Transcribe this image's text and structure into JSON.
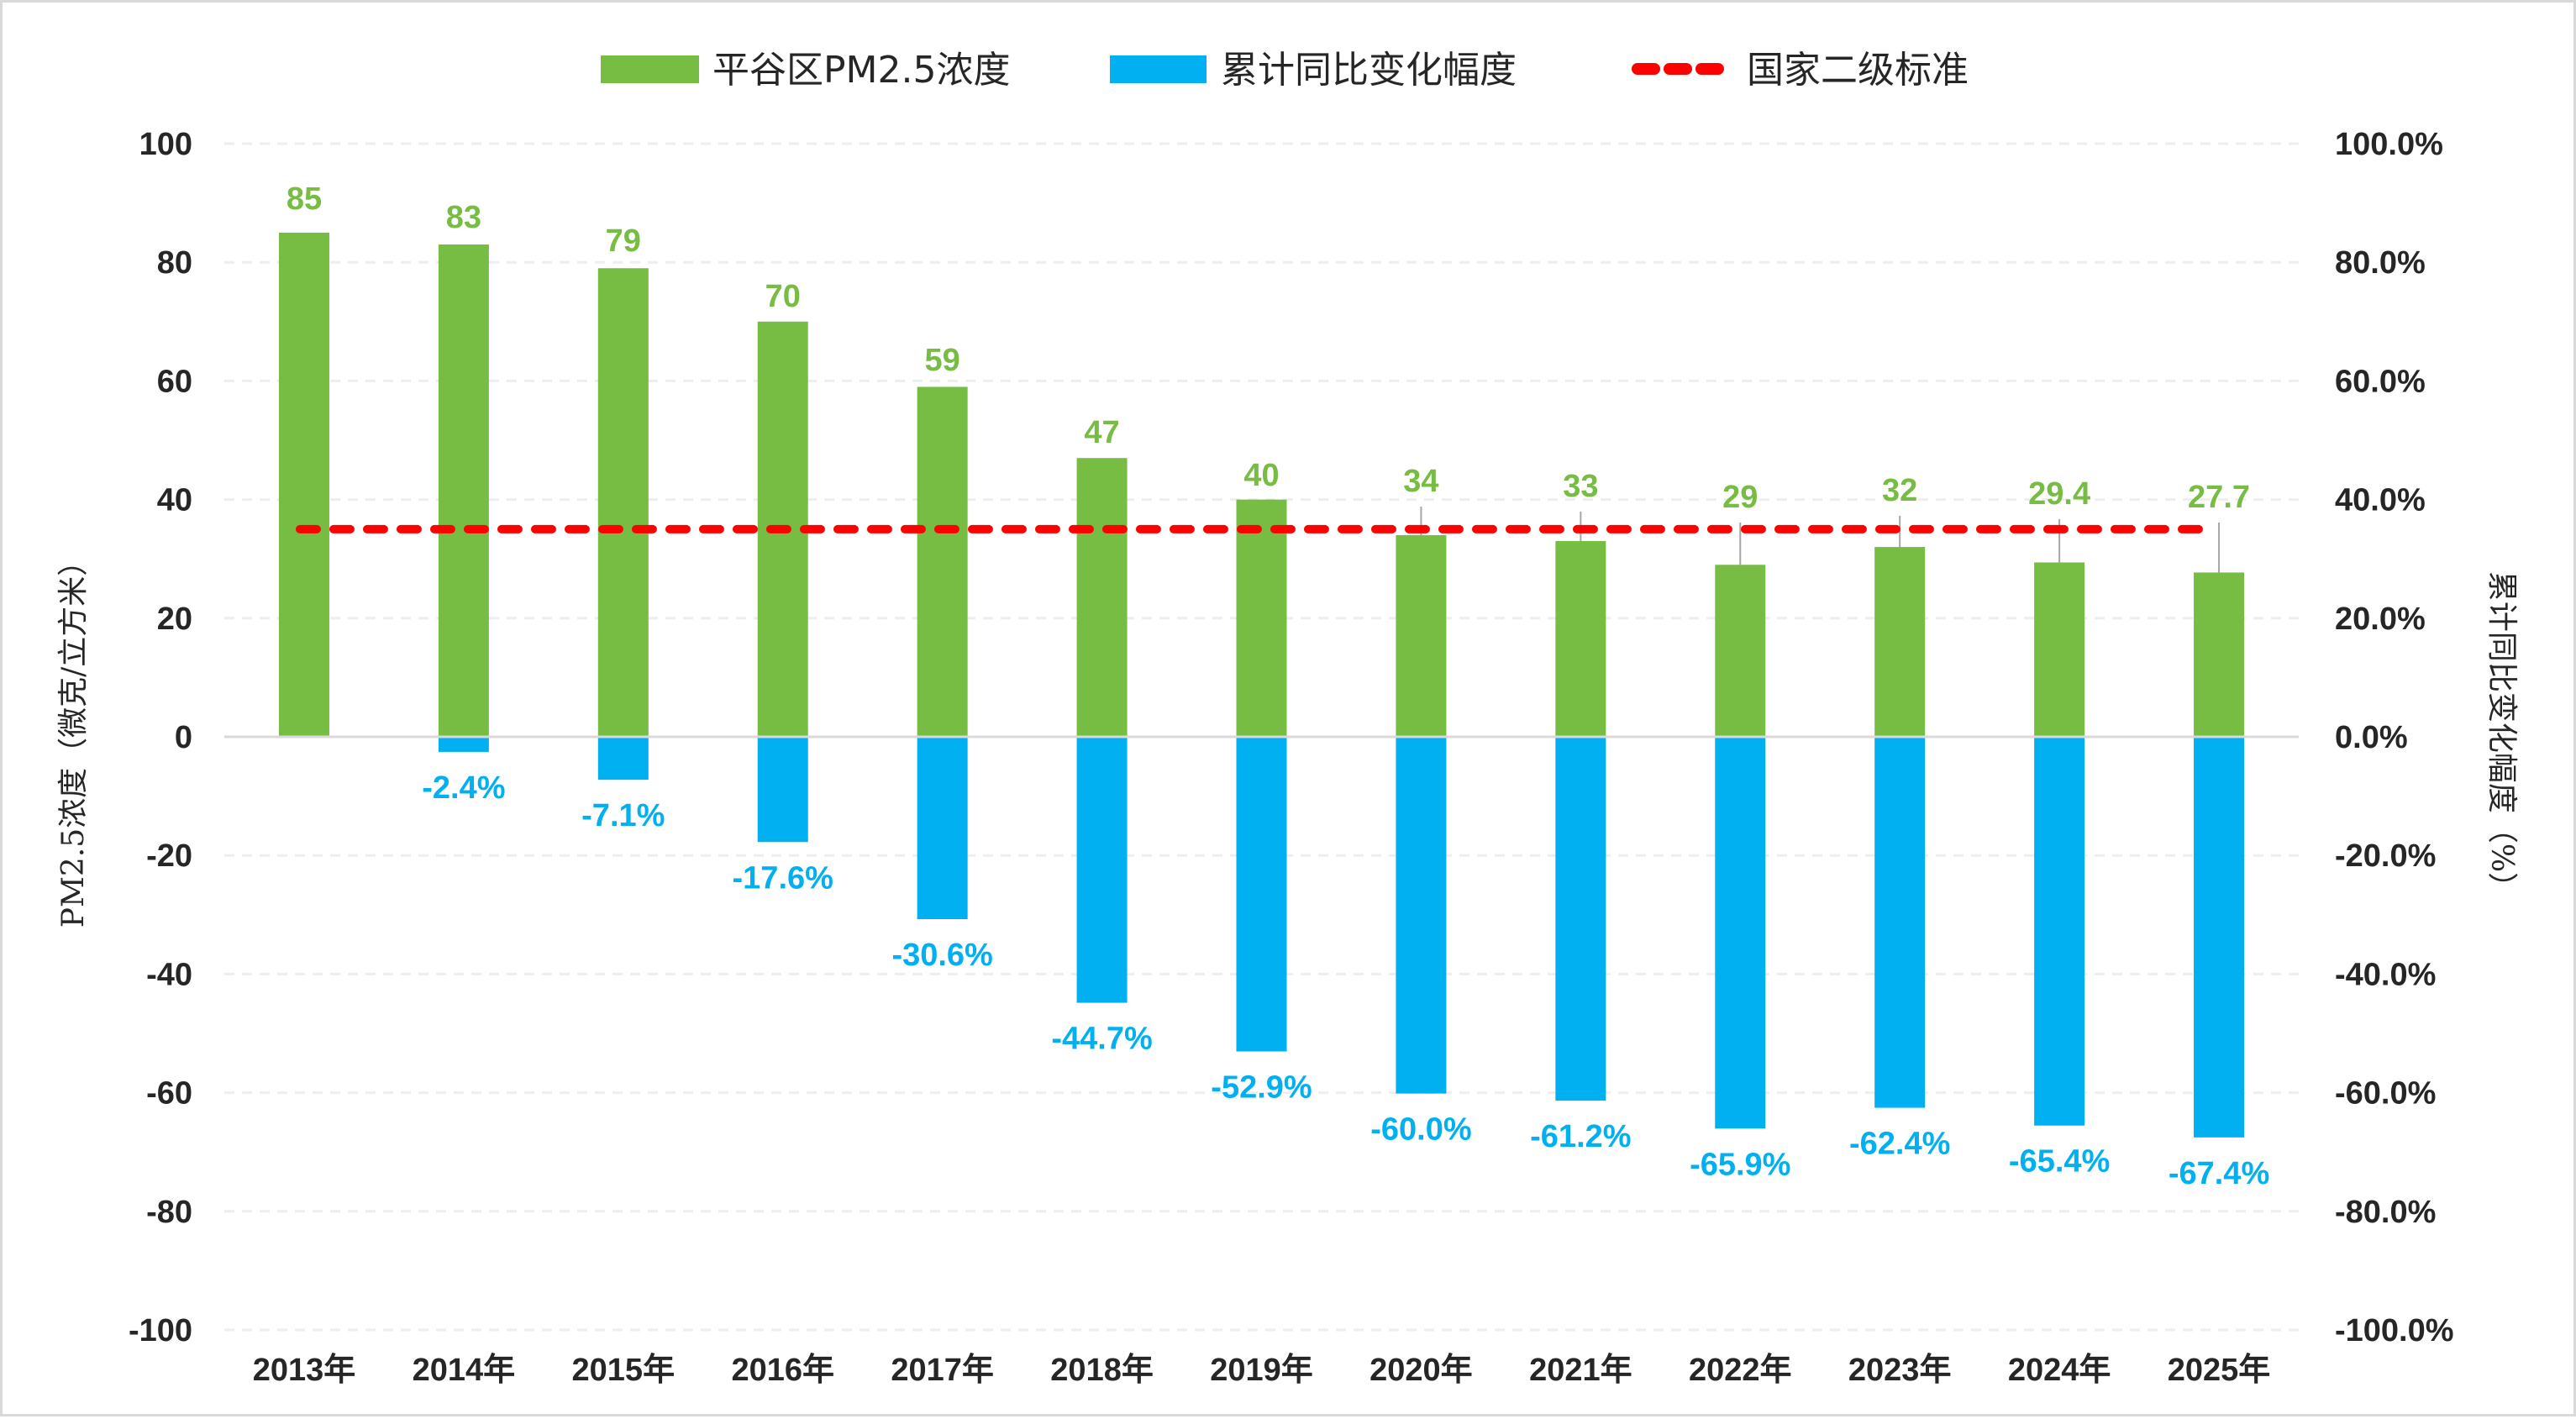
{
  "colors": {
    "pm25": "#77bc43",
    "change": "#00b0f0",
    "standard": "#ff0000",
    "grid": "#eeeeee",
    "axis": "#d9d9d9",
    "leader": "#a6a6a6",
    "text": "#262626"
  },
  "chart_data": {
    "type": "bar",
    "title": "",
    "categories": [
      "2013年",
      "2014年",
      "2015年",
      "2016年",
      "2017年",
      "2018年",
      "2019年",
      "2020年",
      "2021年",
      "2022年",
      "2023年",
      "2024年",
      "2025年"
    ],
    "series": [
      {
        "name": "平谷区PM2.5浓度",
        "type": "bar",
        "axis": "left",
        "values": [
          85,
          83,
          79,
          70,
          59,
          47,
          40,
          34,
          33,
          29,
          32,
          29.4,
          27.7
        ],
        "labels": [
          "85",
          "83",
          "79",
          "70",
          "59",
          "47",
          "40",
          "34",
          "33",
          "29",
          "32",
          "29.4",
          "27.7"
        ]
      },
      {
        "name": "累计同比变化幅度",
        "type": "bar",
        "axis": "right",
        "values": [
          0,
          -2.4,
          -7.1,
          -17.6,
          -30.6,
          -44.7,
          -52.9,
          -60.0,
          -61.2,
          -65.9,
          -62.4,
          -65.4,
          -67.4
        ],
        "labels": [
          "",
          "-2.4%",
          "-7.1%",
          "-17.6%",
          "-30.6%",
          "-44.7%",
          "-52.9%",
          "-60.0%",
          "-61.2%",
          "-65.9%",
          "-62.4%",
          "-65.4%",
          "-67.4%"
        ]
      },
      {
        "name": "国家二级标准",
        "type": "line",
        "style": "dashed",
        "axis": "left",
        "values": [
          35,
          35,
          35,
          35,
          35,
          35,
          35,
          35,
          35,
          35,
          35,
          35,
          35
        ]
      }
    ],
    "xlabel": "",
    "ylabel": "PM2.5浓度（微克/立方米）",
    "y2label": "累计同比变化幅度（%）",
    "ylim": [
      -100,
      100
    ],
    "y2lim": [
      -100,
      100
    ],
    "yticks": [
      "100",
      "80",
      "60",
      "40",
      "20",
      "0",
      "-20",
      "-40",
      "-60",
      "-80",
      "-100"
    ],
    "y2ticks": [
      "100.0%",
      "80.0%",
      "60.0%",
      "40.0%",
      "20.0%",
      "0.0%",
      "-20.0%",
      "-40.0%",
      "-60.0%",
      "-80.0%",
      "-100.0%"
    ],
    "grid": true,
    "legend": "top-center"
  }
}
